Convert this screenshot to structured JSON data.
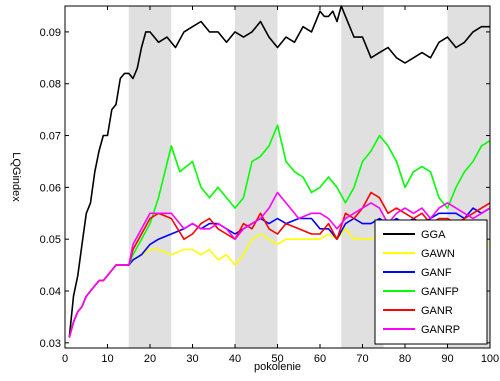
{
  "chart_data": {
    "type": "line",
    "title": "",
    "xlabel": "pokolenie",
    "ylabel": "LQGindex",
    "xlim": [
      0,
      100
    ],
    "ylim": [
      0.029,
      0.095
    ],
    "xticks": [
      0,
      10,
      20,
      30,
      40,
      50,
      60,
      70,
      80,
      90,
      100
    ],
    "yticks": [
      0.03,
      0.04,
      0.05,
      0.06,
      0.07,
      0.08,
      0.09
    ],
    "ytick_labels": [
      "0.03",
      "0.04",
      "0.05",
      "0.06",
      "0.07",
      "0.08",
      "0.09"
    ],
    "shaded_x_ranges": [
      [
        15,
        25
      ],
      [
        40,
        50
      ],
      [
        65,
        75
      ],
      [
        90,
        100
      ]
    ],
    "shade_color": "#e0e0e0",
    "legend_position": "bottom-right",
    "series": [
      {
        "name": "GGA",
        "color": "#000000",
        "x": [
          1,
          2,
          3,
          4,
          5,
          6,
          7,
          8,
          9,
          10,
          11,
          12,
          13,
          14,
          15,
          16,
          17,
          18,
          19,
          20,
          22,
          24,
          26,
          28,
          30,
          32,
          34,
          36,
          38,
          40,
          42,
          44,
          46,
          48,
          50,
          52,
          54,
          56,
          58,
          60,
          61,
          62,
          63,
          64,
          65,
          66,
          68,
          70,
          72,
          74,
          76,
          78,
          80,
          82,
          84,
          86,
          88,
          90,
          92,
          94,
          96,
          98,
          100
        ],
        "y": [
          0.031,
          0.039,
          0.043,
          0.049,
          0.055,
          0.057,
          0.063,
          0.067,
          0.07,
          0.07,
          0.075,
          0.076,
          0.081,
          0.082,
          0.082,
          0.081,
          0.083,
          0.087,
          0.09,
          0.09,
          0.088,
          0.089,
          0.087,
          0.09,
          0.091,
          0.092,
          0.09,
          0.09,
          0.088,
          0.09,
          0.089,
          0.09,
          0.092,
          0.089,
          0.087,
          0.089,
          0.088,
          0.091,
          0.09,
          0.094,
          0.093,
          0.093,
          0.094,
          0.092,
          0.095,
          0.093,
          0.089,
          0.089,
          0.085,
          0.086,
          0.087,
          0.085,
          0.084,
          0.085,
          0.086,
          0.085,
          0.088,
          0.089,
          0.087,
          0.088,
          0.09,
          0.091,
          0.091
        ]
      },
      {
        "name": "GAWN",
        "color": "#ffff00",
        "x": [
          1,
          2,
          3,
          4,
          5,
          6,
          7,
          8,
          9,
          10,
          11,
          12,
          13,
          14,
          15,
          16,
          18,
          20,
          22,
          25,
          28,
          30,
          32,
          34,
          36,
          38,
          40,
          42,
          44,
          46,
          48,
          50,
          52,
          55,
          58,
          60,
          62,
          64,
          66,
          68,
          70,
          72,
          74,
          76,
          78,
          80,
          82,
          84,
          86,
          88,
          90,
          92,
          94,
          96,
          98,
          100
        ],
        "y": [
          0.031,
          0.034,
          0.036,
          0.037,
          0.039,
          0.04,
          0.041,
          0.042,
          0.042,
          0.043,
          0.044,
          0.045,
          0.045,
          0.045,
          0.045,
          0.046,
          0.047,
          0.048,
          0.048,
          0.047,
          0.048,
          0.048,
          0.047,
          0.048,
          0.046,
          0.047,
          0.045,
          0.047,
          0.05,
          0.051,
          0.05,
          0.049,
          0.05,
          0.05,
          0.05,
          0.05,
          0.051,
          0.05,
          0.052,
          0.05,
          0.05,
          0.05,
          0.051,
          0.051,
          0.052,
          0.051,
          0.05,
          0.05,
          0.05,
          0.049,
          0.049,
          0.049,
          0.049,
          0.048,
          0.049,
          0.049
        ]
      },
      {
        "name": "GANF",
        "color": "#0000ff",
        "x": [
          1,
          2,
          3,
          4,
          5,
          6,
          7,
          8,
          9,
          10,
          11,
          12,
          13,
          14,
          15,
          16,
          18,
          20,
          22,
          25,
          28,
          30,
          32,
          34,
          36,
          38,
          40,
          42,
          44,
          46,
          48,
          50,
          52,
          55,
          58,
          60,
          62,
          64,
          66,
          68,
          70,
          72,
          74,
          76,
          78,
          80,
          82,
          84,
          86,
          88,
          90,
          92,
          94,
          96,
          98,
          100
        ],
        "y": [
          0.031,
          0.034,
          0.036,
          0.037,
          0.039,
          0.04,
          0.041,
          0.042,
          0.042,
          0.043,
          0.044,
          0.045,
          0.045,
          0.045,
          0.045,
          0.046,
          0.047,
          0.049,
          0.05,
          0.051,
          0.052,
          0.053,
          0.052,
          0.053,
          0.053,
          0.052,
          0.051,
          0.052,
          0.053,
          0.054,
          0.053,
          0.054,
          0.053,
          0.054,
          0.054,
          0.052,
          0.052,
          0.05,
          0.053,
          0.054,
          0.053,
          0.053,
          0.054,
          0.053,
          0.054,
          0.053,
          0.054,
          0.053,
          0.054,
          0.055,
          0.055,
          0.055,
          0.054,
          0.056,
          0.055,
          0.056
        ]
      },
      {
        "name": "GANFP",
        "color": "#00ff00",
        "x": [
          1,
          2,
          3,
          4,
          5,
          6,
          7,
          8,
          9,
          10,
          11,
          12,
          13,
          14,
          15,
          16,
          18,
          20,
          22,
          25,
          27,
          30,
          32,
          34,
          36,
          38,
          40,
          42,
          44,
          46,
          48,
          50,
          52,
          54,
          56,
          58,
          60,
          62,
          64,
          66,
          68,
          70,
          72,
          74,
          76,
          78,
          80,
          82,
          84,
          86,
          88,
          90,
          92,
          94,
          96,
          98,
          100
        ],
        "y": [
          0.031,
          0.034,
          0.036,
          0.037,
          0.039,
          0.04,
          0.041,
          0.042,
          0.042,
          0.043,
          0.044,
          0.045,
          0.045,
          0.045,
          0.045,
          0.047,
          0.05,
          0.053,
          0.058,
          0.068,
          0.063,
          0.065,
          0.06,
          0.058,
          0.06,
          0.058,
          0.056,
          0.058,
          0.065,
          0.066,
          0.068,
          0.072,
          0.065,
          0.063,
          0.062,
          0.059,
          0.06,
          0.062,
          0.06,
          0.057,
          0.06,
          0.065,
          0.067,
          0.07,
          0.068,
          0.065,
          0.06,
          0.063,
          0.064,
          0.063,
          0.058,
          0.056,
          0.06,
          0.063,
          0.065,
          0.068,
          0.069
        ]
      },
      {
        "name": "GANR",
        "color": "#ff0000",
        "x": [
          1,
          2,
          3,
          4,
          5,
          6,
          7,
          8,
          9,
          10,
          11,
          12,
          13,
          14,
          15,
          16,
          18,
          20,
          22,
          25,
          28,
          30,
          32,
          34,
          36,
          38,
          40,
          42,
          44,
          46,
          48,
          50,
          52,
          55,
          58,
          60,
          62,
          64,
          66,
          68,
          70,
          72,
          74,
          76,
          78,
          80,
          82,
          84,
          86,
          88,
          90,
          92,
          94,
          96,
          98,
          100
        ],
        "y": [
          0.031,
          0.034,
          0.036,
          0.037,
          0.039,
          0.04,
          0.041,
          0.042,
          0.042,
          0.043,
          0.044,
          0.045,
          0.045,
          0.045,
          0.045,
          0.048,
          0.051,
          0.054,
          0.055,
          0.054,
          0.05,
          0.051,
          0.053,
          0.054,
          0.052,
          0.051,
          0.05,
          0.053,
          0.052,
          0.055,
          0.052,
          0.051,
          0.053,
          0.052,
          0.051,
          0.051,
          0.053,
          0.05,
          0.055,
          0.054,
          0.056,
          0.059,
          0.058,
          0.055,
          0.056,
          0.055,
          0.054,
          0.055,
          0.053,
          0.054,
          0.054,
          0.053,
          0.054,
          0.055,
          0.056,
          0.057
        ]
      },
      {
        "name": "GANRP",
        "color": "#ff00ff",
        "x": [
          1,
          2,
          3,
          4,
          5,
          6,
          7,
          8,
          9,
          10,
          11,
          12,
          13,
          14,
          15,
          16,
          18,
          20,
          22,
          25,
          28,
          30,
          32,
          34,
          36,
          38,
          40,
          42,
          44,
          46,
          48,
          50,
          52,
          55,
          58,
          60,
          62,
          64,
          66,
          68,
          70,
          72,
          74,
          76,
          78,
          80,
          82,
          84,
          86,
          88,
          90,
          92,
          94,
          96,
          98,
          100
        ],
        "y": [
          0.031,
          0.034,
          0.036,
          0.037,
          0.039,
          0.04,
          0.041,
          0.042,
          0.042,
          0.043,
          0.044,
          0.045,
          0.045,
          0.045,
          0.045,
          0.049,
          0.052,
          0.055,
          0.055,
          0.055,
          0.052,
          0.053,
          0.052,
          0.052,
          0.053,
          0.052,
          0.05,
          0.052,
          0.053,
          0.054,
          0.056,
          0.059,
          0.057,
          0.054,
          0.055,
          0.055,
          0.054,
          0.052,
          0.054,
          0.055,
          0.056,
          0.057,
          0.056,
          0.053,
          0.055,
          0.056,
          0.055,
          0.056,
          0.054,
          0.056,
          0.057,
          0.056,
          0.055,
          0.054,
          0.055,
          0.056
        ]
      }
    ]
  }
}
